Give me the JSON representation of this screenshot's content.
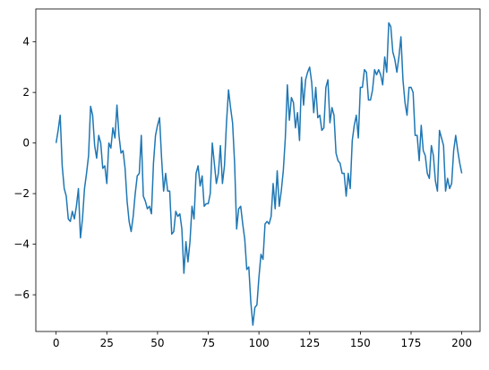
{
  "chart_data": {
    "type": "line",
    "x": [
      0,
      1,
      2,
      3,
      4,
      5,
      6,
      7,
      8,
      9,
      10,
      11,
      12,
      13,
      14,
      15,
      16,
      17,
      18,
      19,
      20,
      21,
      22,
      23,
      24,
      25,
      26,
      27,
      28,
      29,
      30,
      31,
      32,
      33,
      34,
      35,
      36,
      37,
      38,
      39,
      40,
      41,
      42,
      43,
      44,
      45,
      46,
      47,
      48,
      49,
      50,
      51,
      52,
      53,
      54,
      55,
      56,
      57,
      58,
      59,
      60,
      61,
      62,
      63,
      64,
      65,
      66,
      67,
      68,
      69,
      70,
      71,
      72,
      73,
      74,
      75,
      76,
      77,
      78,
      79,
      80,
      81,
      82,
      83,
      84,
      85,
      86,
      87,
      88,
      89,
      90,
      91,
      92,
      93,
      94,
      95,
      96,
      97,
      98,
      99,
      100,
      101,
      102,
      103,
      104,
      105,
      106,
      107,
      108,
      109,
      110,
      111,
      112,
      113,
      114,
      115,
      116,
      117,
      118,
      119,
      120,
      121,
      122,
      123,
      124,
      125,
      126,
      127,
      128,
      129,
      130,
      131,
      132,
      133,
      134,
      135,
      136,
      137,
      138,
      139,
      140,
      141,
      142,
      143,
      144,
      145,
      146,
      147,
      148,
      149,
      150,
      151,
      152,
      153,
      154,
      155,
      156,
      157,
      158,
      159,
      160,
      161,
      162,
      163,
      164,
      165,
      166,
      167,
      168,
      169,
      170,
      171,
      172,
      173,
      174,
      175,
      176,
      177,
      178,
      179,
      180,
      181,
      182,
      183,
      184,
      185,
      186,
      187,
      188,
      189,
      190,
      191,
      192,
      193,
      194,
      195,
      196,
      197,
      198,
      199,
      200
    ],
    "series": [
      {
        "color": "#1f77b4",
        "values": [
          0,
          0.5,
          1.1,
          -0.9,
          -1.8,
          -2.1,
          -3.0,
          -3.1,
          -2.7,
          -3.0,
          -2.5,
          -1.8,
          -3.75,
          -3.0,
          -1.8,
          -1.2,
          -0.5,
          1.45,
          1.1,
          -0.1,
          -0.6,
          0.3,
          0.0,
          -1.0,
          -0.9,
          -1.6,
          0.0,
          -0.2,
          0.6,
          0.2,
          1.5,
          0.3,
          -0.4,
          -0.3,
          -1.0,
          -2.3,
          -3.1,
          -3.5,
          -2.9,
          -2.0,
          -1.3,
          -1.2,
          0.3,
          -2.1,
          -2.3,
          -2.6,
          -2.5,
          -2.8,
          -0.8,
          0.3,
          0.7,
          1.0,
          -0.6,
          -1.9,
          -1.2,
          -1.9,
          -1.9,
          -3.6,
          -3.5,
          -2.7,
          -2.9,
          -2.8,
          -3.4,
          -5.15,
          -3.9,
          -4.7,
          -3.9,
          -2.5,
          -3.0,
          -1.2,
          -0.9,
          -1.7,
          -1.3,
          -2.5,
          -2.4,
          -2.4,
          -2.0,
          0.0,
          -0.8,
          -1.6,
          -1.2,
          -0.1,
          -1.6,
          -0.9,
          0.8,
          2.1,
          1.4,
          0.8,
          -0.8,
          -3.4,
          -2.6,
          -2.5,
          -3.2,
          -3.8,
          -5.0,
          -4.9,
          -6.3,
          -7.2,
          -6.5,
          -6.4,
          -5.3,
          -4.4,
          -4.6,
          -3.2,
          -3.1,
          -3.2,
          -2.9,
          -1.6,
          -2.6,
          -1.1,
          -2.5,
          -1.9,
          -1.1,
          0.2,
          2.3,
          0.9,
          1.8,
          1.6,
          0.6,
          1.2,
          0.1,
          2.6,
          1.5,
          2.5,
          2.8,
          3.0,
          2.4,
          1.2,
          2.2,
          1.0,
          1.1,
          0.5,
          0.6,
          2.2,
          2.5,
          0.8,
          1.4,
          1.1,
          -0.4,
          -0.7,
          -0.8,
          -1.2,
          -1.2,
          -2.1,
          -1.2,
          -1.8,
          0.1,
          0.7,
          1.1,
          0.2,
          2.2,
          2.2,
          2.9,
          2.8,
          1.7,
          1.7,
          2.1,
          2.9,
          2.7,
          2.9,
          2.7,
          2.3,
          3.4,
          2.8,
          4.75,
          4.6,
          3.6,
          3.3,
          2.8,
          3.4,
          4.2,
          2.5,
          1.6,
          1.1,
          2.2,
          2.2,
          2.0,
          0.3,
          0.3,
          -0.7,
          0.7,
          -0.3,
          -0.5,
          -1.2,
          -1.4,
          -0.1,
          -0.5,
          -1.5,
          -1.9,
          0.5,
          0.2,
          -0.1,
          -1.9,
          -1.4,
          -1.8,
          -1.6,
          -0.3,
          0.3,
          -0.3,
          -0.8,
          -1.2
        ]
      }
    ],
    "xlim": [
      -10,
      209
    ],
    "ylim": [
      -7.45,
      5.3
    ],
    "xticks": [
      0,
      25,
      50,
      75,
      100,
      125,
      150,
      175,
      200
    ],
    "yticks": [
      {
        "value": -6,
        "label": "−6"
      },
      {
        "value": -4,
        "label": "−4"
      },
      {
        "value": -2,
        "label": "−2"
      },
      0,
      2,
      4
    ]
  }
}
